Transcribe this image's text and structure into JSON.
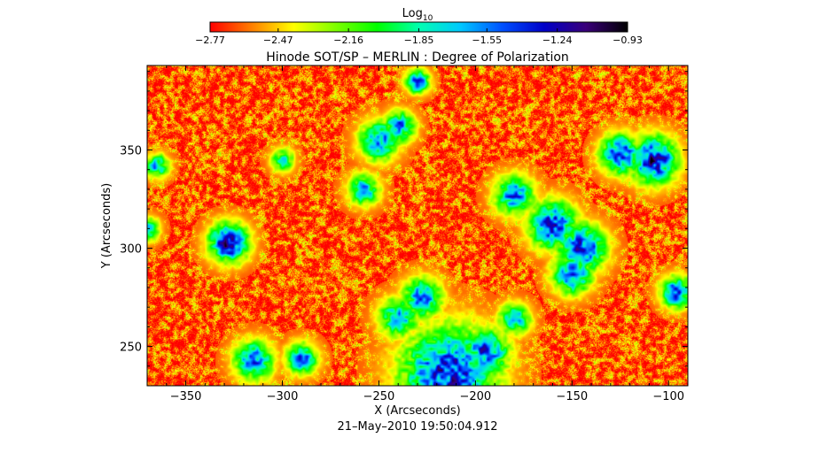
{
  "chart_data": {
    "type": "heatmap",
    "title": "Hinode SOT/SP – MERLIN : Degree of Polarization",
    "xlabel": "X (Arcseconds)",
    "ylabel": "Y (Arcseconds)",
    "footer": "21–May–2010 19:50:04.912",
    "colorbar": {
      "label_base": "Log",
      "label_sub": "10",
      "min": -2.77,
      "max": -0.93,
      "ticks": [
        "−2.77",
        "−2.47",
        "−2.16",
        "−1.85",
        "−1.55",
        "−1.24",
        "−0.93"
      ],
      "tick_values": [
        -2.77,
        -2.47,
        -2.16,
        -1.85,
        -1.55,
        -1.24,
        -0.93
      ],
      "colors": [
        "#ff0000",
        "#ff7f00",
        "#ffff00",
        "#7fff00",
        "#00ff00",
        "#00ffb0",
        "#00c8ff",
        "#0050ff",
        "#0000c8",
        "#3a007a",
        "#000000"
      ]
    },
    "xlim": [
      -370,
      -90
    ],
    "ylim": [
      230,
      393
    ],
    "xticks": [
      {
        "value": -350,
        "label": "−350"
      },
      {
        "value": -300,
        "label": "−300"
      },
      {
        "value": -250,
        "label": "−250"
      },
      {
        "value": -200,
        "label": "−200"
      },
      {
        "value": -150,
        "label": "−150"
      },
      {
        "value": -100,
        "label": "−100"
      }
    ],
    "yticks": [
      {
        "value": 250,
        "label": "250"
      },
      {
        "value": 300,
        "label": "300"
      },
      {
        "value": 350,
        "label": "350"
      }
    ],
    "background_level": -2.65,
    "patches": [
      {
        "x": -328,
        "y": 303,
        "r": 5,
        "peak": -1.2
      },
      {
        "x": -214,
        "y": 236,
        "r": 12,
        "peak": -1.3
      },
      {
        "x": -195,
        "y": 247,
        "r": 6,
        "peak": -1.4
      },
      {
        "x": -228,
        "y": 275,
        "r": 5,
        "peak": -1.5
      },
      {
        "x": -240,
        "y": 265,
        "r": 5,
        "peak": -1.6
      },
      {
        "x": -258,
        "y": 330,
        "r": 4,
        "peak": -1.6
      },
      {
        "x": -250,
        "y": 355,
        "r": 5,
        "peak": -1.5
      },
      {
        "x": -240,
        "y": 362,
        "r": 4,
        "peak": -1.5
      },
      {
        "x": -230,
        "y": 385,
        "r": 3,
        "peak": -1.4
      },
      {
        "x": -180,
        "y": 327,
        "r": 5,
        "peak": -1.5
      },
      {
        "x": -160,
        "y": 312,
        "r": 6,
        "peak": -1.3
      },
      {
        "x": -145,
        "y": 300,
        "r": 6,
        "peak": -1.3
      },
      {
        "x": -150,
        "y": 287,
        "r": 5,
        "peak": -1.4
      },
      {
        "x": -125,
        "y": 348,
        "r": 5,
        "peak": -1.3
      },
      {
        "x": -108,
        "y": 345,
        "r": 6,
        "peak": -1.2
      },
      {
        "x": -96,
        "y": 278,
        "r": 4,
        "peak": -1.4
      },
      {
        "x": -315,
        "y": 243,
        "r": 5,
        "peak": -1.5
      },
      {
        "x": -290,
        "y": 244,
        "r": 4,
        "peak": -1.5
      },
      {
        "x": -180,
        "y": 264,
        "r": 4,
        "peak": -1.6
      },
      {
        "x": -365,
        "y": 342,
        "r": 3,
        "peak": -1.6
      },
      {
        "x": -370,
        "y": 310,
        "r": 3,
        "peak": -1.7
      },
      {
        "x": -300,
        "y": 345,
        "r": 3,
        "peak": -1.8
      }
    ],
    "grid": false
  }
}
